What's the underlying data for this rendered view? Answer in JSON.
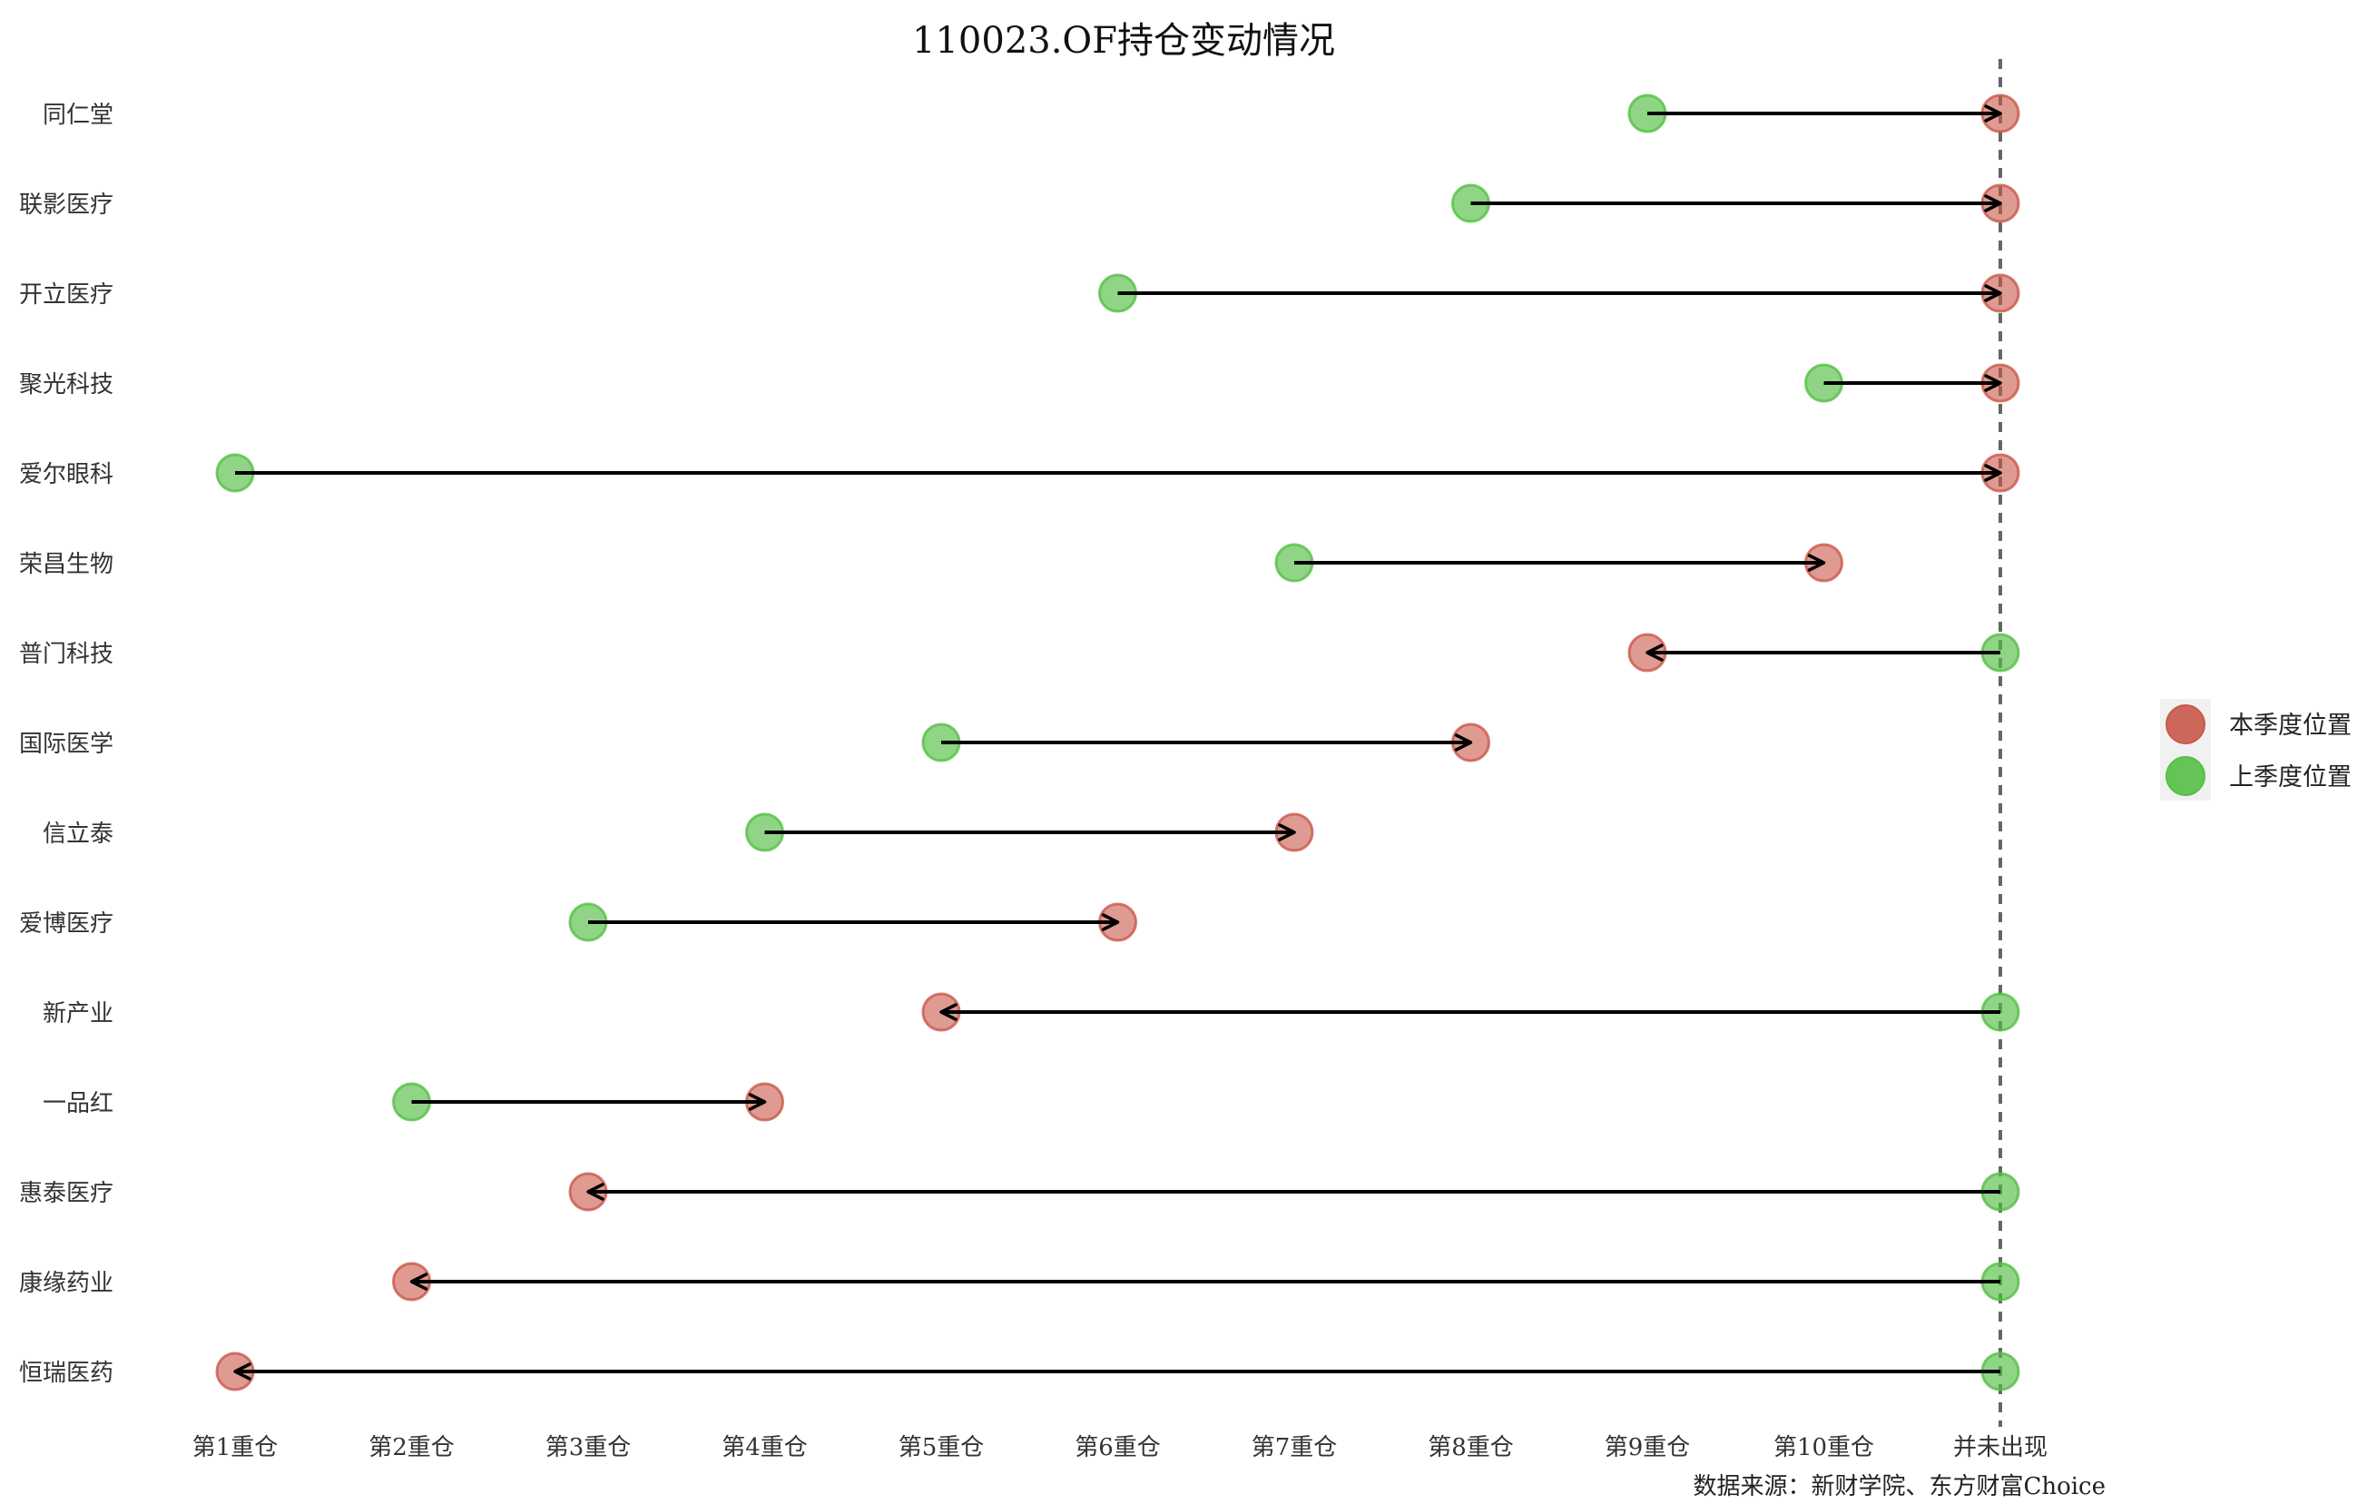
{
  "chart_data": {
    "type": "dumbbell",
    "title": "110023.OF持仓变动情况",
    "source": "数据来源：新财学院、东方财富Choice",
    "x_categories": [
      "第1重仓",
      "第2重仓",
      "第3重仓",
      "第4重仓",
      "第5重仓",
      "第6重仓",
      "第7重仓",
      "第8重仓",
      "第9重仓",
      "第10重仓",
      "并未出现"
    ],
    "legend": [
      {
        "name": "本季度位置",
        "color": "#c9584a"
      },
      {
        "name": "上季度位置",
        "color": "#55bf45"
      }
    ],
    "colors": {
      "current": "#c9584a",
      "previous": "#55bf45",
      "arrow": "#000000",
      "dashed_line": "#666666"
    },
    "stocks": [
      {
        "name": "同仁堂",
        "previous": "第9重仓",
        "current": "并未出现"
      },
      {
        "name": "联影医疗",
        "previous": "第8重仓",
        "current": "并未出现"
      },
      {
        "name": "开立医疗",
        "previous": "第6重仓",
        "current": "并未出现"
      },
      {
        "name": "聚光科技",
        "previous": "第10重仓",
        "current": "并未出现"
      },
      {
        "name": "爱尔眼科",
        "previous": "第1重仓",
        "current": "并未出现"
      },
      {
        "name": "荣昌生物",
        "previous": "第7重仓",
        "current": "第10重仓"
      },
      {
        "name": "普门科技",
        "previous": "并未出现",
        "current": "第9重仓"
      },
      {
        "name": "国际医学",
        "previous": "第5重仓",
        "current": "第8重仓"
      },
      {
        "name": "信立泰",
        "previous": "第4重仓",
        "current": "第7重仓"
      },
      {
        "name": "爱博医疗",
        "previous": "第3重仓",
        "current": "第6重仓"
      },
      {
        "name": "新产业",
        "previous": "并未出现",
        "current": "第5重仓"
      },
      {
        "name": "一品红",
        "previous": "第2重仓",
        "current": "第4重仓"
      },
      {
        "name": "惠泰医疗",
        "previous": "并未出现",
        "current": "第3重仓"
      },
      {
        "name": "康缘药业",
        "previous": "并未出现",
        "current": "第2重仓"
      },
      {
        "name": "恒瑞医药",
        "previous": "并未出现",
        "current": "第1重仓"
      }
    ]
  }
}
